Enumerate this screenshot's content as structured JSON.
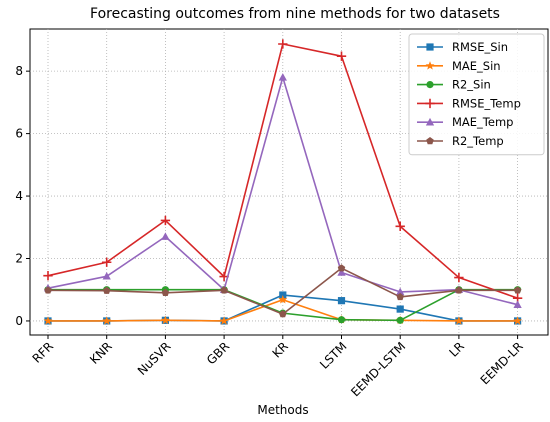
{
  "chart_data": {
    "type": "line",
    "title": "Forecasting outcomes from nine methods for two datasets",
    "xlabel": "Methods",
    "ylabel": "",
    "categories": [
      "RFR",
      "KNR",
      "NuSVR",
      "GBR",
      "KR",
      "LSTM",
      "EEMD-LSTM",
      "LR",
      "EEMD-LR"
    ],
    "yticks": [
      0,
      2,
      4,
      6,
      8
    ],
    "ylim": [
      -0.45,
      9.35
    ],
    "grid": true,
    "legend_position": "top-right",
    "series": [
      {
        "name": "RMSE_Sin",
        "color": "#1f77b4",
        "marker": "square",
        "values": [
          0.0,
          0.0,
          0.02,
          0.0,
          0.83,
          0.65,
          0.38,
          0.0,
          0.0
        ]
      },
      {
        "name": "MAE_Sin",
        "color": "#ff7f0e",
        "marker": "star",
        "values": [
          0.0,
          0.0,
          0.02,
          0.0,
          0.68,
          0.04,
          0.02,
          0.0,
          0.0
        ]
      },
      {
        "name": "R2_Sin",
        "color": "#2ca02c",
        "marker": "circle",
        "values": [
          1.0,
          1.0,
          1.0,
          1.0,
          0.25,
          0.04,
          0.02,
          1.0,
          1.0
        ]
      },
      {
        "name": "RMSE_Temp",
        "color": "#d62728",
        "marker": "plus",
        "values": [
          1.45,
          1.88,
          3.22,
          1.42,
          8.87,
          8.48,
          3.03,
          1.39,
          0.73
        ]
      },
      {
        "name": "MAE_Temp",
        "color": "#9467bd",
        "marker": "triangle",
        "values": [
          1.05,
          1.43,
          2.7,
          1.0,
          7.8,
          1.55,
          0.93,
          1.0,
          0.52
        ]
      },
      {
        "name": "R2_Temp",
        "color": "#8c564b",
        "marker": "pentagon",
        "values": [
          0.98,
          0.97,
          0.9,
          0.98,
          0.22,
          1.69,
          0.77,
          0.98,
          0.98
        ]
      }
    ]
  }
}
